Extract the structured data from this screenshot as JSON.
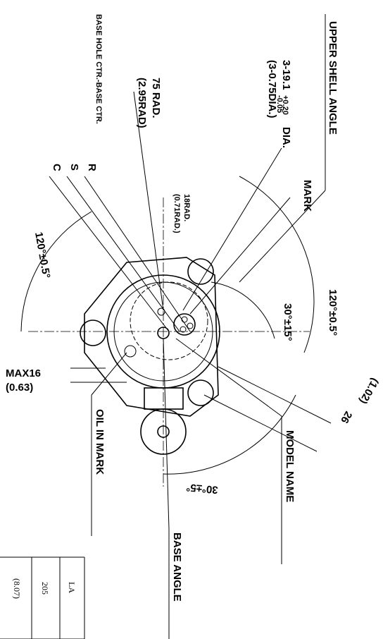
{
  "labels": {
    "upper_shell_angle": "UPPER SHELL ANGLE",
    "hole_dia": "3-19.1",
    "tol_plus": "+0.20",
    "tol_minus": "-0.05",
    "dia": "DIA.",
    "hole_dia_in": "(3-0.75DIA.)",
    "rad": "75 RAD.",
    "rad_in": "(2.95RAD)",
    "base_hole": "BASE HOLE CTR.-BASE CTR.",
    "r": "R",
    "s": "S",
    "c": "C",
    "mark": "MARK",
    "small_rad": "18RAD.",
    "small_rad_in": "(0.71RAD.)",
    "angle_left": "120°±0.5°",
    "angle_right": "120°±0.5°",
    "angle_mark": "30°±15°",
    "dim26": "26",
    "dim26_in": "(1.02)",
    "max16": "MAX16",
    "max16_in": "(0.63)",
    "oil_in_mark": "OIL IN MARK",
    "model_name": "MODEL NAME",
    "angle_base": "30°±5°",
    "base_angle": "BASE ANGLE"
  },
  "table": {
    "rows": [
      [
        "LA"
      ],
      [
        "205"
      ],
      [
        "(8.07)"
      ]
    ]
  }
}
